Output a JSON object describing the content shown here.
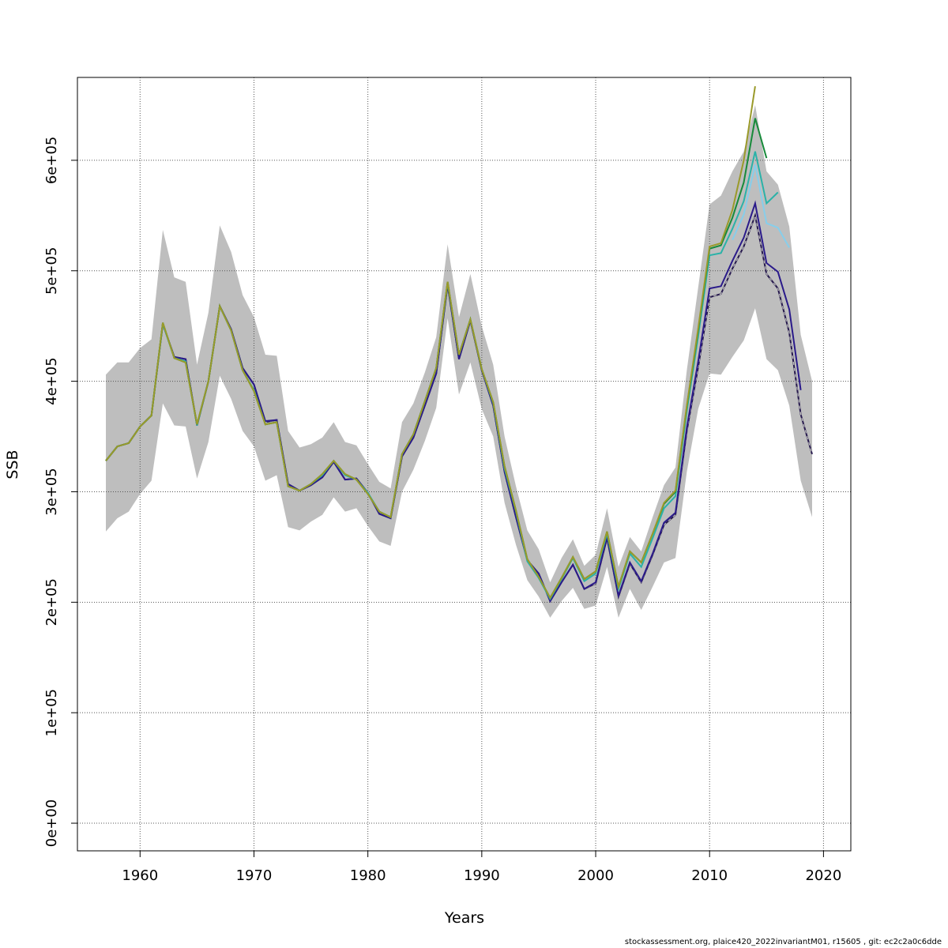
{
  "chart_data": {
    "type": "line",
    "xlabel": "Years",
    "ylabel": "SSB",
    "xlim": [
      1954.5,
      2022.4
    ],
    "ylim": [
      -25000,
      675000
    ],
    "x_ticks": [
      1960,
      1970,
      1980,
      1990,
      2000,
      2010,
      2020
    ],
    "y_ticks": [
      0,
      100000,
      200000,
      300000,
      400000,
      500000,
      600000
    ],
    "y_tick_labels": [
      "0e+00",
      "1e+05",
      "2e+05",
      "3e+05",
      "4e+05",
      "5e+05",
      "6e+05"
    ],
    "grid": true,
    "band": {
      "color": "#bebebe",
      "years": [
        1957,
        1958,
        1959,
        1960,
        1961,
        1962,
        1963,
        1964,
        1965,
        1966,
        1967,
        1968,
        1969,
        1970,
        1971,
        1972,
        1973,
        1974,
        1975,
        1976,
        1977,
        1978,
        1979,
        1980,
        1981,
        1982,
        1983,
        1984,
        1985,
        1986,
        1987,
        1988,
        1989,
        1990,
        1991,
        1992,
        1993,
        1994,
        1995,
        1996,
        1997,
        1998,
        1999,
        2000,
        2001,
        2002,
        2003,
        2004,
        2005,
        2006,
        2007,
        2008,
        2009,
        2010,
        2011,
        2012,
        2013,
        2014,
        2015,
        2016,
        2017,
        2018,
        2019
      ],
      "upper": [
        406000,
        417000,
        417000,
        430000,
        438000,
        537000,
        494000,
        490000,
        415000,
        462000,
        541000,
        517000,
        478000,
        458000,
        424000,
        423000,
        355000,
        340000,
        343000,
        349000,
        363000,
        345000,
        342000,
        325000,
        309000,
        303000,
        363000,
        380000,
        408000,
        440000,
        524000,
        458000,
        497000,
        450000,
        415000,
        350000,
        305000,
        265000,
        248000,
        218000,
        240000,
        257000,
        233000,
        243000,
        285000,
        232000,
        259000,
        246000,
        277000,
        306000,
        322000,
        410000,
        485000,
        560000,
        568000,
        590000,
        608000,
        650000,
        590000,
        578000,
        540000,
        442000,
        400000
      ],
      "lower": [
        264000,
        276000,
        282000,
        298000,
        310000,
        380000,
        360000,
        359000,
        312000,
        345000,
        405000,
        384000,
        355000,
        341000,
        310000,
        315000,
        268000,
        265000,
        273000,
        279000,
        295000,
        282000,
        285000,
        269000,
        255000,
        251000,
        300000,
        320000,
        346000,
        376000,
        457000,
        388000,
        417000,
        375000,
        350000,
        290000,
        252000,
        220000,
        205000,
        186000,
        201000,
        213000,
        194000,
        197000,
        232000,
        186000,
        212000,
        193000,
        214000,
        236000,
        240000,
        318000,
        375000,
        407000,
        406000,
        422000,
        437000,
        466000,
        420000,
        410000,
        378000,
        310000,
        277000
      ]
    },
    "series": [
      {
        "color": "#26194d",
        "years": [
          1957,
          1958,
          1959,
          1960,
          1961,
          1962,
          1963,
          1964,
          1965,
          1966,
          1967,
          1968,
          1969,
          1970,
          1971,
          1972,
          1973,
          1974,
          1975,
          1976,
          1977,
          1978,
          1979,
          1980,
          1981,
          1982,
          1983,
          1984,
          1985,
          1986,
          1987,
          1988,
          1989,
          1990,
          1991,
          1992,
          1993,
          1994,
          1995,
          1996,
          1997,
          1998,
          1999,
          2000,
          2001,
          2002,
          2003,
          2004,
          2005,
          2006,
          2007,
          2008,
          2009,
          2010,
          2011,
          2012,
          2013,
          2014,
          2015,
          2016,
          2017,
          2018,
          2019
        ],
        "values": [
          328000,
          341000,
          344000,
          359000,
          369000,
          452000,
          422000,
          420000,
          360000,
          400000,
          468000,
          447000,
          412000,
          397000,
          363000,
          365000,
          307000,
          301000,
          306000,
          313000,
          327000,
          311000,
          312000,
          299000,
          280000,
          276000,
          332000,
          349000,
          378000,
          407000,
          487000,
          420000,
          455000,
          410000,
          378000,
          318000,
          277000,
          238000,
          226000,
          201000,
          218000,
          234000,
          212000,
          217000,
          258000,
          205000,
          235000,
          218000,
          243000,
          270000,
          279000,
          355000,
          413000,
          476000,
          479000,
          502000,
          522000,
          550000,
          497000,
          484000,
          444000,
          370000,
          334000
        ],
        "dashed": true
      },
      {
        "color": "#2a1a8a",
        "years": [
          1957,
          1958,
          1959,
          1960,
          1961,
          1962,
          1963,
          1964,
          1965,
          1966,
          1967,
          1968,
          1969,
          1970,
          1971,
          1972,
          1973,
          1974,
          1975,
          1976,
          1977,
          1978,
          1979,
          1980,
          1981,
          1982,
          1983,
          1984,
          1985,
          1986,
          1987,
          1988,
          1989,
          1990,
          1991,
          1992,
          1993,
          1994,
          1995,
          1996,
          1997,
          1998,
          1999,
          2000,
          2001,
          2002,
          2003,
          2004,
          2005,
          2006,
          2007,
          2008,
          2009,
          2010,
          2011,
          2012,
          2013,
          2014,
          2015,
          2016,
          2017,
          2018
        ],
        "values": [
          328000,
          341000,
          344000,
          359000,
          369000,
          452000,
          422000,
          420000,
          360000,
          400000,
          468000,
          447000,
          412000,
          397000,
          364000,
          365000,
          307000,
          301000,
          306000,
          313000,
          327000,
          311000,
          312000,
          299000,
          280000,
          276000,
          332000,
          349000,
          378000,
          407000,
          488000,
          420000,
          455000,
          410000,
          378000,
          318000,
          277000,
          238000,
          226000,
          201000,
          218000,
          234000,
          212000,
          218000,
          259000,
          206000,
          236000,
          219000,
          244000,
          272000,
          281000,
          358000,
          418000,
          484000,
          486000,
          509000,
          530000,
          561000,
          507000,
          499000,
          465000,
          392000
        ]
      },
      {
        "color": "#87ceeb",
        "years": [
          2012,
          2013,
          2014,
          2015,
          2016,
          2017
        ],
        "values": [
          528000,
          551000,
          596000,
          543000,
          539000,
          521000
        ]
      },
      {
        "color": "#2ab2a8",
        "years": [
          1957,
          1958,
          1959,
          1960,
          1961,
          1962,
          1963,
          1964,
          1965,
          1966,
          1967,
          1968,
          1969,
          1970,
          1971,
          1972,
          1973,
          1974,
          1975,
          1976,
          1977,
          1978,
          1979,
          1980,
          1981,
          1982,
          1983,
          1984,
          1985,
          1986,
          1987,
          1988,
          1989,
          1990,
          1991,
          1992,
          1993,
          1994,
          1995,
          1996,
          1997,
          1998,
          1999,
          2000,
          2001,
          2002,
          2003,
          2004,
          2005,
          2006,
          2007,
          2008,
          2009,
          2010,
          2011,
          2012,
          2013,
          2014,
          2015,
          2016
        ],
        "values": [
          328000,
          341000,
          344000,
          359000,
          369000,
          452000,
          421000,
          418000,
          360000,
          400000,
          468000,
          446000,
          410000,
          392000,
          361000,
          363000,
          305000,
          301000,
          307000,
          315000,
          328000,
          315000,
          311000,
          299000,
          282000,
          277000,
          334000,
          352000,
          382000,
          412000,
          489000,
          424000,
          456000,
          411000,
          380000,
          321000,
          282000,
          237000,
          222000,
          203000,
          221000,
          240000,
          219000,
          226000,
          262000,
          212000,
          244000,
          232000,
          258000,
          285000,
          296000,
          373000,
          441000,
          514000,
          516000,
          538000,
          563000,
          608000,
          561000,
          571000
        ]
      },
      {
        "color": "#178a3a",
        "years": [
          1957,
          1958,
          1959,
          1960,
          1961,
          1962,
          1963,
          1964,
          1965,
          1966,
          1967,
          1968,
          1969,
          1970,
          1971,
          1972,
          1973,
          1974,
          1975,
          1976,
          1977,
          1978,
          1979,
          1980,
          1981,
          1982,
          1983,
          1984,
          1985,
          1986,
          1987,
          1988,
          1989,
          1990,
          1991,
          1992,
          1993,
          1994,
          1995,
          1996,
          1997,
          1998,
          1999,
          2000,
          2001,
          2002,
          2003,
          2004,
          2005,
          2006,
          2007,
          2008,
          2009,
          2010,
          2011,
          2012,
          2013,
          2014,
          2015
        ],
        "values": [
          328000,
          341000,
          344000,
          359000,
          369000,
          453000,
          421000,
          417000,
          361000,
          400000,
          468000,
          446000,
          410000,
          391000,
          361000,
          363000,
          305000,
          301000,
          307000,
          316000,
          328000,
          316000,
          311000,
          298000,
          282000,
          277000,
          334000,
          352000,
          382000,
          412000,
          490000,
          424000,
          456000,
          411000,
          381000,
          323000,
          283000,
          239000,
          223000,
          204000,
          222000,
          241000,
          221000,
          228000,
          264000,
          214000,
          246000,
          236000,
          262000,
          289000,
          300000,
          377000,
          446000,
          520000,
          523000,
          548000,
          580000,
          638000,
          602000
        ]
      },
      {
        "color": "#9a9a2a",
        "years": [
          1957,
          1958,
          1959,
          1960,
          1961,
          1962,
          1963,
          1964,
          1965,
          1966,
          1967,
          1968,
          1969,
          1970,
          1971,
          1972,
          1973,
          1974,
          1975,
          1976,
          1977,
          1978,
          1979,
          1980,
          1981,
          1982,
          1983,
          1984,
          1985,
          1986,
          1987,
          1988,
          1989,
          1990,
          1991,
          1992,
          1993,
          1994,
          1995,
          1996,
          1997,
          1998,
          1999,
          2000,
          2001,
          2002,
          2003,
          2004,
          2005,
          2006,
          2007,
          2008,
          2009,
          2010,
          2011,
          2012,
          2013,
          2014
        ],
        "values": [
          328000,
          341000,
          344000,
          359000,
          369000,
          453000,
          421000,
          417000,
          361000,
          400000,
          468000,
          446000,
          410000,
          391000,
          361000,
          363000,
          305000,
          301000,
          307000,
          316000,
          328000,
          316000,
          311000,
          298000,
          282000,
          277000,
          334000,
          352000,
          382000,
          412000,
          490000,
          424000,
          456000,
          411000,
          381000,
          323000,
          283000,
          239000,
          223000,
          204000,
          222000,
          241000,
          221000,
          228000,
          264000,
          214000,
          246000,
          236000,
          262000,
          290000,
          301000,
          378000,
          448000,
          522000,
          525000,
          555000,
          600000,
          667000
        ]
      }
    ]
  },
  "footer": "stockassessment.org, plaice420_2022invariantM01, r15605 , git: ec2c2a0c6dde"
}
